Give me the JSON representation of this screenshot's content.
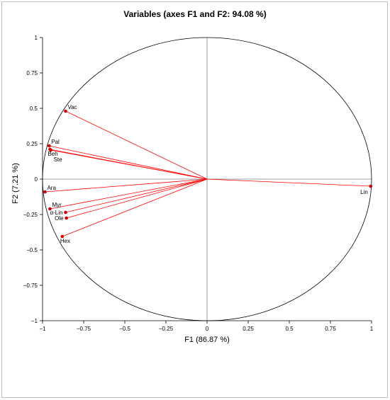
{
  "chart_data": {
    "type": "scatter",
    "title": "Variables (axes F1 and F2: 94.08 %)",
    "xlabel": "F1 (86.87 %)",
    "ylabel": "F2 (7.21 %)",
    "xlim": [
      -1,
      1
    ],
    "ylim": [
      -1,
      1
    ],
    "x_ticks": [
      {
        "value": -1,
        "label": "−1"
      },
      {
        "value": -0.75,
        "label": "−0.75"
      },
      {
        "value": -0.5,
        "label": "−0.5"
      },
      {
        "value": -0.25,
        "label": "−0.25"
      },
      {
        "value": 0,
        "label": "0"
      },
      {
        "value": 0.25,
        "label": "0.25"
      },
      {
        "value": 0.5,
        "label": "0.5"
      },
      {
        "value": 0.75,
        "label": "0.75"
      },
      {
        "value": 1,
        "label": "1"
      }
    ],
    "y_ticks": [
      {
        "value": 1,
        "label": "1"
      },
      {
        "value": 0.75,
        "label": "0.75"
      },
      {
        "value": 0.5,
        "label": "0.5"
      },
      {
        "value": 0.25,
        "label": "0.25"
      },
      {
        "value": 0,
        "label": "0"
      },
      {
        "value": -0.25,
        "label": "−0.25"
      },
      {
        "value": -0.5,
        "label": "−0.5"
      },
      {
        "value": -0.75,
        "label": "−0.75"
      },
      {
        "value": -1,
        "label": "−1"
      }
    ],
    "correlation_circle": true,
    "grid": false,
    "colors": {
      "vector": "#ff0000",
      "point": "#cc0000",
      "circle": "#000000",
      "axes_zero": "#808080"
    },
    "points": [
      {
        "name": "Vac",
        "x": -0.86,
        "y": 0.48,
        "label_pos": "right-up"
      },
      {
        "name": "Pal",
        "x": -0.96,
        "y": 0.235,
        "label_pos": "right-up"
      },
      {
        "name": "Beh",
        "x": -0.955,
        "y": 0.21,
        "label_pos": "below"
      },
      {
        "name": "Ste",
        "x": -0.95,
        "y": 0.205,
        "label_pos": "below-right"
      },
      {
        "name": "Ara",
        "x": -0.985,
        "y": -0.09,
        "label_pos": "right-up"
      },
      {
        "name": "Myr",
        "x": -0.955,
        "y": -0.21,
        "label_pos": "right-up"
      },
      {
        "name": "α-Lin",
        "x": -0.86,
        "y": -0.235,
        "label_pos": "left"
      },
      {
        "name": "Ole",
        "x": -0.855,
        "y": -0.275,
        "label_pos": "left"
      },
      {
        "name": "Hex",
        "x": -0.88,
        "y": -0.405,
        "label_pos": "below"
      },
      {
        "name": "Lin",
        "x": 0.995,
        "y": -0.05,
        "label_pos": "below-left"
      }
    ]
  }
}
